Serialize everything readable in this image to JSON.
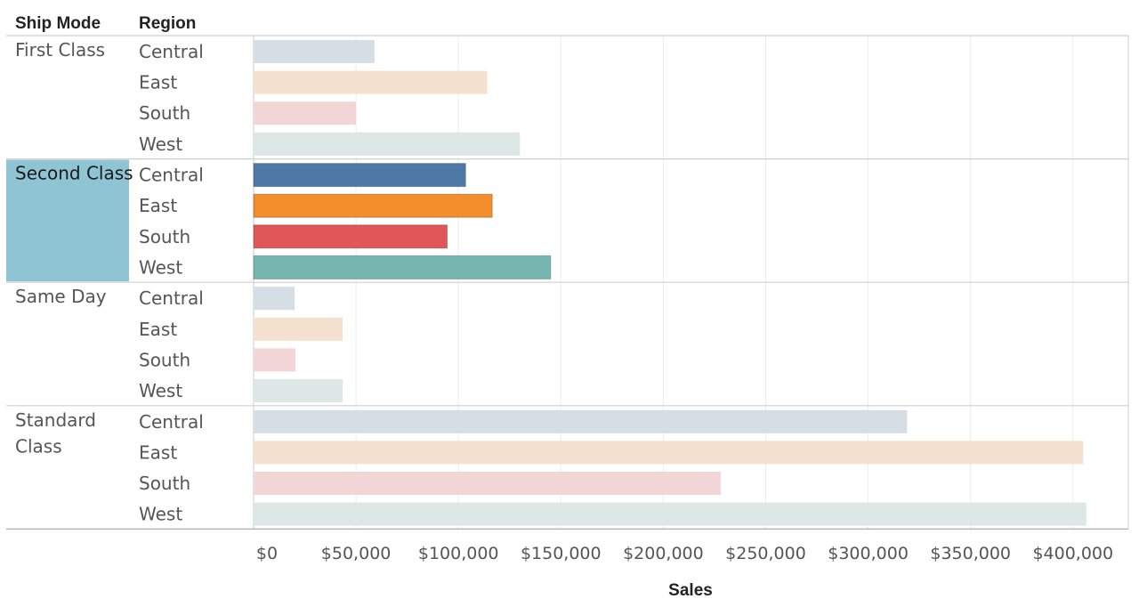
{
  "chart_data": {
    "type": "bar",
    "orientation": "horizontal",
    "row_headers": [
      "Ship Mode",
      "Region"
    ],
    "xlabel": "Sales",
    "xlim": [
      0,
      410000
    ],
    "x_ticks": [
      0,
      50000,
      100000,
      150000,
      200000,
      250000,
      300000,
      350000,
      400000
    ],
    "x_tick_labels": [
      "$0",
      "$50,000",
      "$100,000",
      "$150,000",
      "$200,000",
      "$250,000",
      "$300,000",
      "$350,000",
      "$400,000"
    ],
    "grid": true,
    "highlighted_group": "Second Class",
    "region_colors": {
      "Central": "#4e79a7",
      "East": "#f28e2b",
      "South": "#e15759",
      "West": "#76b7b2"
    },
    "dimmed_colors": {
      "Central": "#d5dde5",
      "East": "#f5e1cf",
      "South": "#f2d5d7",
      "West": "#dce7e6"
    },
    "highlight_cell_color": "#8fc4d3",
    "groups": [
      {
        "label": "First Class",
        "bars": [
          {
            "region": "Central",
            "value": 59000
          },
          {
            "region": "East",
            "value": 114000
          },
          {
            "region": "South",
            "value": 50000
          },
          {
            "region": "West",
            "value": 130000
          }
        ]
      },
      {
        "label": "Second Class",
        "bars": [
          {
            "region": "Central",
            "value": 103500
          },
          {
            "region": "East",
            "value": 116500
          },
          {
            "region": "South",
            "value": 94500
          },
          {
            "region": "West",
            "value": 145000
          }
        ]
      },
      {
        "label": "Same Day",
        "bars": [
          {
            "region": "Central",
            "value": 20000
          },
          {
            "region": "East",
            "value": 43500
          },
          {
            "region": "South",
            "value": 20500
          },
          {
            "region": "West",
            "value": 43500
          }
        ]
      },
      {
        "label": "Standard Class",
        "label_lines": [
          "Standard",
          "Class"
        ],
        "bars": [
          {
            "region": "Central",
            "value": 319000
          },
          {
            "region": "East",
            "value": 405000
          },
          {
            "region": "South",
            "value": 228000
          },
          {
            "region": "West",
            "value": 406500
          }
        ]
      }
    ]
  }
}
